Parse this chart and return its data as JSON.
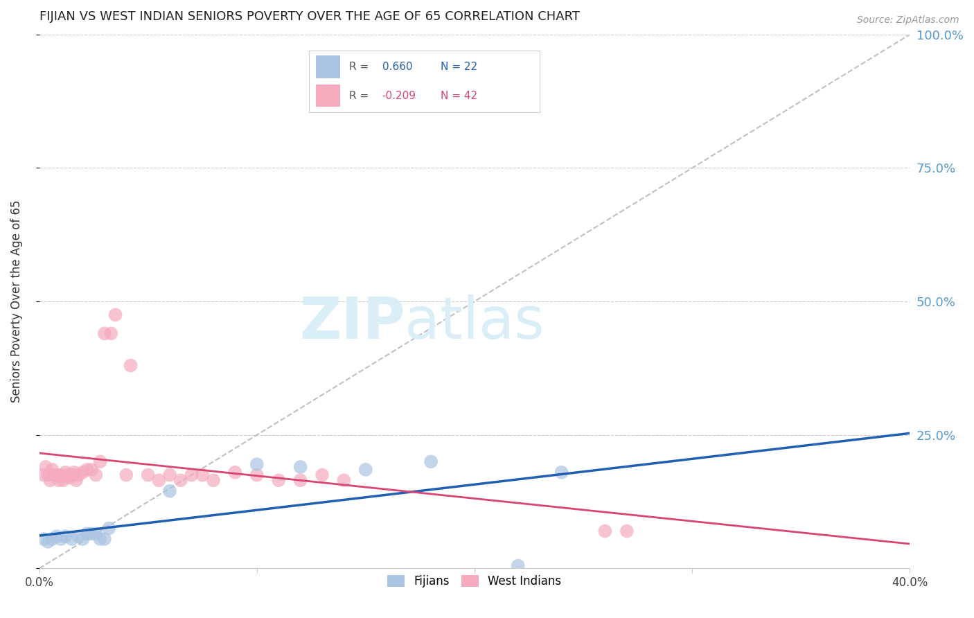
{
  "title": "FIJIAN VS WEST INDIAN SENIORS POVERTY OVER THE AGE OF 65 CORRELATION CHART",
  "source": "Source: ZipAtlas.com",
  "ylabel": "Seniors Poverty Over the Age of 65",
  "xmin": 0.0,
  "xmax": 0.4,
  "ymin": 0.0,
  "ymax": 1.0,
  "yticks": [
    0.0,
    0.25,
    0.5,
    0.75,
    1.0
  ],
  "ytick_labels": [
    "",
    "25.0%",
    "50.0%",
    "75.0%",
    "100.0%"
  ],
  "xticks": [
    0.0,
    0.1,
    0.2,
    0.3,
    0.4
  ],
  "fijian_R": 0.66,
  "fijian_N": 22,
  "westindian_R": -0.209,
  "westindian_N": 42,
  "fijian_color": "#aac4e2",
  "westindian_color": "#f5aabe",
  "fijian_line_color": "#2060b0",
  "westindian_line_color": "#d84570",
  "diagonal_color": "#c0c0c0",
  "background_color": "#ffffff",
  "grid_color": "#cccccc",
  "title_color": "#222222",
  "axis_label_color": "#333333",
  "right_axis_color": "#5599cc",
  "watermark_color": "#daeef8",
  "legend_border_color": "#cccccc",
  "fijian_points": [
    [
      0.002,
      0.055
    ],
    [
      0.004,
      0.05
    ],
    [
      0.006,
      0.055
    ],
    [
      0.008,
      0.06
    ],
    [
      0.01,
      0.055
    ],
    [
      0.012,
      0.06
    ],
    [
      0.015,
      0.055
    ],
    [
      0.018,
      0.06
    ],
    [
      0.02,
      0.055
    ],
    [
      0.022,
      0.065
    ],
    [
      0.024,
      0.065
    ],
    [
      0.026,
      0.065
    ],
    [
      0.028,
      0.055
    ],
    [
      0.03,
      0.055
    ],
    [
      0.032,
      0.075
    ],
    [
      0.06,
      0.145
    ],
    [
      0.1,
      0.195
    ],
    [
      0.12,
      0.19
    ],
    [
      0.15,
      0.185
    ],
    [
      0.18,
      0.2
    ],
    [
      0.22,
      0.005
    ],
    [
      0.24,
      0.18
    ]
  ],
  "westindian_points": [
    [
      0.002,
      0.175
    ],
    [
      0.003,
      0.19
    ],
    [
      0.004,
      0.175
    ],
    [
      0.005,
      0.165
    ],
    [
      0.006,
      0.185
    ],
    [
      0.007,
      0.175
    ],
    [
      0.008,
      0.175
    ],
    [
      0.009,
      0.165
    ],
    [
      0.01,
      0.175
    ],
    [
      0.011,
      0.165
    ],
    [
      0.012,
      0.18
    ],
    [
      0.013,
      0.175
    ],
    [
      0.014,
      0.17
    ],
    [
      0.015,
      0.175
    ],
    [
      0.016,
      0.18
    ],
    [
      0.017,
      0.165
    ],
    [
      0.018,
      0.175
    ],
    [
      0.02,
      0.18
    ],
    [
      0.022,
      0.185
    ],
    [
      0.024,
      0.185
    ],
    [
      0.026,
      0.175
    ],
    [
      0.028,
      0.2
    ],
    [
      0.03,
      0.44
    ],
    [
      0.033,
      0.44
    ],
    [
      0.035,
      0.475
    ],
    [
      0.04,
      0.175
    ],
    [
      0.042,
      0.38
    ],
    [
      0.05,
      0.175
    ],
    [
      0.055,
      0.165
    ],
    [
      0.06,
      0.175
    ],
    [
      0.065,
      0.165
    ],
    [
      0.07,
      0.175
    ],
    [
      0.075,
      0.175
    ],
    [
      0.08,
      0.165
    ],
    [
      0.09,
      0.18
    ],
    [
      0.1,
      0.175
    ],
    [
      0.11,
      0.165
    ],
    [
      0.12,
      0.165
    ],
    [
      0.13,
      0.175
    ],
    [
      0.14,
      0.165
    ],
    [
      0.26,
      0.07
    ],
    [
      0.27,
      0.07
    ]
  ]
}
